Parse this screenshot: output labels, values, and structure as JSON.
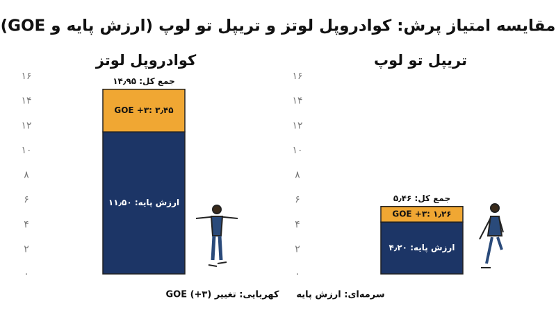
{
  "title": "مقایسه امتیاز پرش: کوادروپل لوتز و تریپل تو لوپ (ارزش پایه و GOE)",
  "chart_data": [
    {
      "type": "bar",
      "stacked": true,
      "title": "کوادروپل لوتز",
      "series": [
        {
          "name": "سرمه‌ای: ارزش پایه",
          "color": "#1c3566",
          "values": [
            11.5
          ],
          "value_labels": [
            "ارزش پایه: ۱۱٫۵۰"
          ]
        },
        {
          "name": "کهربایی: تغییر GOE (+۳)",
          "color": "#f0a733",
          "values": [
            3.45
          ],
          "value_labels": [
            "GOE +۳: ۳٫۴۵"
          ]
        }
      ],
      "total": 14.95,
      "total_label": "جمع کل: ۱۴٫۹۵",
      "ylim": [
        0,
        16
      ],
      "yticks": [
        {
          "value": 0,
          "label": "۰"
        },
        {
          "value": 2,
          "label": "۲"
        },
        {
          "value": 4,
          "label": "۴"
        },
        {
          "value": 6,
          "label": "۶"
        },
        {
          "value": 8,
          "label": "۸"
        },
        {
          "value": 10,
          "label": "۱۰"
        },
        {
          "value": 12,
          "label": "۱۲"
        },
        {
          "value": 14,
          "label": "۱۴"
        },
        {
          "value": 16,
          "label": "۱۶"
        }
      ]
    },
    {
      "type": "bar",
      "stacked": true,
      "title": "تریپل تو لوپ",
      "series": [
        {
          "color": "#1c3566",
          "values": [
            4.2
          ],
          "value_labels": [
            "ارزش پایه: ۴٫۲۰"
          ]
        },
        {
          "color": "#f0a733",
          "values": [
            1.26
          ],
          "value_labels": [
            "GOE +۳: ۱٫۲۶"
          ]
        }
      ],
      "total": 5.46,
      "total_label": "جمع کل: ۵٫۴۶",
      "ylim": [
        0,
        16
      ],
      "yticks": [
        {
          "value": 0,
          "label": "۰"
        },
        {
          "value": 2,
          "label": "۲"
        },
        {
          "value": 4,
          "label": "۴"
        },
        {
          "value": 6,
          "label": "۶"
        },
        {
          "value": 8,
          "label": "۸"
        },
        {
          "value": 10,
          "label": "۱۰"
        },
        {
          "value": 12,
          "label": "۱۲"
        },
        {
          "value": 14,
          "label": "۱۴"
        },
        {
          "value": 16,
          "label": "۱۶"
        }
      ]
    }
  ]
}
